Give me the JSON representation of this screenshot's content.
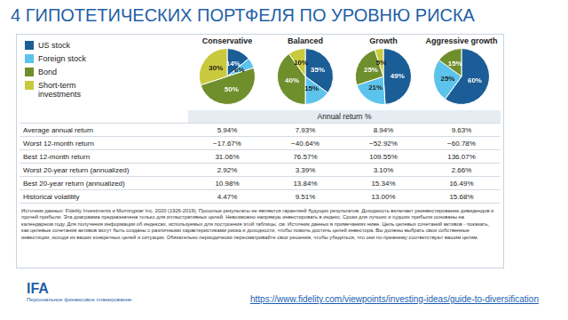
{
  "title": "4 ГИПОТЕТИЧЕСКИХ ПОРТФЕЛЯ ПО УРОВНЮ РИСКА",
  "chart_data": [
    {
      "type": "pie",
      "title": "Conservative",
      "categories": [
        "US stock",
        "Foreign stock",
        "Bond",
        "Short-term investments"
      ],
      "values": [
        14,
        6,
        50,
        30
      ],
      "value_labels": [
        "14%",
        "6%",
        "50%",
        "30%"
      ],
      "colors": [
        "#1b5e97",
        "#5cc3ec",
        "#6f8f2c",
        "#c9c93d"
      ],
      "data_labels": true,
      "legend": "left"
    },
    {
      "type": "pie",
      "title": "Balanced",
      "categories": [
        "US stock",
        "Foreign stock",
        "Bond",
        "Short-term investments"
      ],
      "values": [
        35,
        15,
        40,
        10
      ],
      "value_labels": [
        "35%",
        "15%",
        "40%",
        "10%"
      ],
      "colors": [
        "#1b5e97",
        "#5cc3ec",
        "#6f8f2c",
        "#c9c93d"
      ],
      "data_labels": true
    },
    {
      "type": "pie",
      "title": "Growth",
      "categories": [
        "US stock",
        "Foreign stock",
        "Bond",
        "Short-term investments"
      ],
      "values": [
        49,
        21,
        25,
        5
      ],
      "value_labels": [
        "49%",
        "21%",
        "25%",
        "5%"
      ],
      "colors": [
        "#1b5e97",
        "#5cc3ec",
        "#6f8f2c",
        "#c9c93d"
      ],
      "data_labels": true
    },
    {
      "type": "pie",
      "title": "Aggressive growth",
      "categories": [
        "US stock",
        "Foreign stock",
        "Bond",
        "Short-term investments"
      ],
      "values": [
        60,
        25,
        15,
        0
      ],
      "value_labels": [
        "60%",
        "25%",
        "15%",
        null
      ],
      "colors": [
        "#1b5e97",
        "#5cc3ec",
        "#6f8f2c",
        "#c9c93d"
      ],
      "data_labels": true
    }
  ],
  "table": {
    "header": "Annual return %",
    "rows": [
      [
        "Average annual return",
        "5.94%",
        "7.93%",
        "8.94%",
        "9.63%"
      ],
      [
        "Worst 12-month return",
        "−17.67%",
        "−40.64%",
        "−52.92%",
        "−60.78%"
      ],
      [
        "Best 12-month return",
        "31.06%",
        "76.57%",
        "109.55%",
        "136.07%"
      ],
      [
        "Worst 20-year return (annualized)",
        "2.92%",
        "3.39%",
        "3.10%",
        "2.66%"
      ],
      [
        "Best 20-year return (annualized)",
        "10.98%",
        "13.84%",
        "15.34%",
        "16.49%"
      ],
      [
        "Historical volatility",
        "4.47%",
        "9.51%",
        "13.00%",
        "15.68%"
      ]
    ]
  },
  "source": "Источник данных: Fidelity Investments и Morningstar Inc, 2020 (1926-2019). Прошлые результаты не являются гарантией будущих результатов. Доходность включает реинвестирование дивидендов и прочей прибыли. Эта диаграмма предназначена только для иллюстративных целей. Невозможно напрямую инвестировать в индекс. Сроки для лучших и худших прибыли основаны на календарном году. Для получения информации об индексах, используемых для построения этой таблицы, см. Источник данных в примечаниях ниже. Цель целевых сочетаний активов - показать, как целевые сочетания активов могут быть созданы с различными характеристиками риска и доходности, чтобы помочь достичь целей инвестора. Вы должны выбрать свои собственные инвестиции, исходя из ваших конкретных целей и ситуации. Обязательно периодически пересматривайте свои решения, чтобы убедиться, что они по-прежнему соответствуют вашим целям.",
  "url": "https://www.fidelity.com/viewpoints/investing-ideas/guide-to-diversification",
  "logo": {
    "name": "IFA",
    "subtitle": "Персональное финансовое планирование"
  }
}
